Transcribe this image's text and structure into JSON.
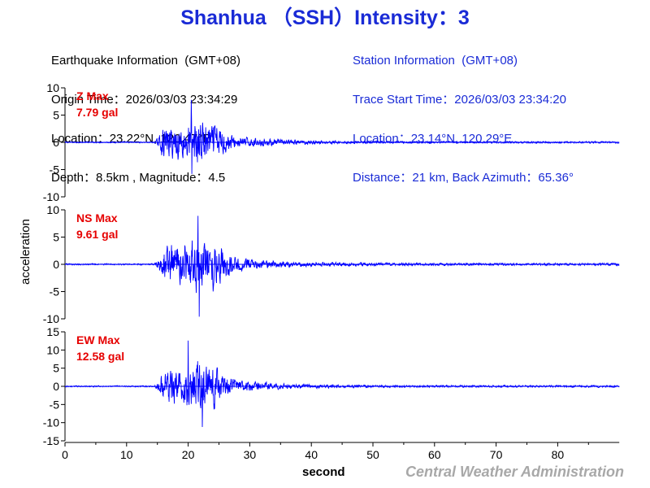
{
  "title": "Shanhua （SSH）Intensity：3",
  "earthquake_info": {
    "heading": "Earthquake Information  (GMT+08)",
    "origin_time": "Origin Time：2026/03/03 23:34:29",
    "location": "Location：23.22°N, 120.47°E",
    "depth_magnitude": "Depth：8.5km , Magnitude：4.5"
  },
  "station_info": {
    "heading": "Station Information  (GMT+08)",
    "trace_start": "Trace Start Time：2026/03/03 23:34:20",
    "location": "Location：23.14°N, 120.29°E",
    "distance": "Distance：21 km, Back Azimuth：65.36°"
  },
  "ylabel": "acceleration",
  "xlabel": "second",
  "credit": "Central Weather Administration",
  "colors": {
    "title": "#1a2bd6",
    "trace": "#0000ff",
    "max_label": "#e60000",
    "credit": "#a8a8a8"
  },
  "chart_data": {
    "type": "line",
    "x_range": [
      0,
      90
    ],
    "x_ticks": [
      0,
      10,
      20,
      30,
      40,
      50,
      60,
      70,
      80
    ],
    "signal_onset_s": 14.6,
    "grid": false,
    "panels": [
      {
        "component": "Z",
        "max_label": "Z Max",
        "max_value": "7.79 gal",
        "ylim": [
          -10,
          10
        ],
        "y_ticks": [
          10,
          5,
          0,
          -5,
          -10
        ],
        "peak_time_s": 20.5,
        "peak_value": 7.79,
        "trough_time_s": 20.6,
        "trough_value": -5.8
      },
      {
        "component": "NS",
        "max_label": "NS Max",
        "max_value": "9.61 gal",
        "ylim": [
          -10,
          10
        ],
        "y_ticks": [
          10,
          5,
          0,
          -5,
          -10
        ],
        "peak_time_s": 21.6,
        "peak_value": 8.9,
        "trough_time_s": 21.8,
        "trough_value": -9.61
      },
      {
        "component": "EW",
        "max_label": "EW Max",
        "max_value": "12.58 gal",
        "ylim": [
          -15,
          15
        ],
        "y_ticks": [
          15,
          10,
          5,
          0,
          -5,
          -10,
          -15
        ],
        "peak_time_s": 20.0,
        "peak_value": 12.58,
        "trough_time_s": 22.3,
        "trough_value": -11.2
      }
    ]
  }
}
